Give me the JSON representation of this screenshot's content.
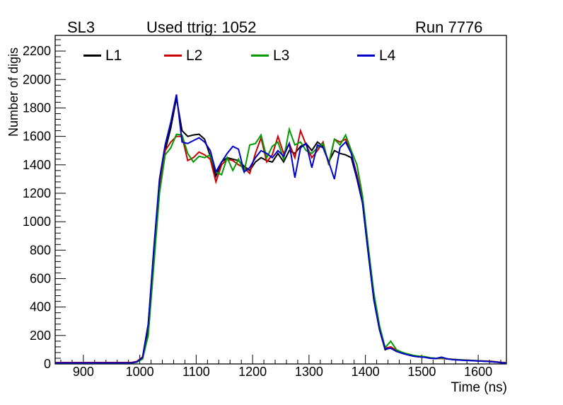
{
  "chart_data": {
    "type": "line",
    "titles": {
      "left": "SL3",
      "center": "Used ttrig: 1052",
      "right": "Run 7776"
    },
    "xlabel": "Time (ns)",
    "ylabel": "Number of digis",
    "xlim": [
      850,
      1650
    ],
    "ylim": [
      0,
      2310
    ],
    "x_major_ticks": [
      900,
      1000,
      1100,
      1200,
      1300,
      1400,
      1500,
      1600
    ],
    "x_minor_step": 20,
    "y_major_ticks": [
      0,
      200,
      400,
      600,
      800,
      1000,
      1200,
      1400,
      1600,
      1800,
      2000,
      2200
    ],
    "y_minor_step": 40,
    "bin_width_ns": 10,
    "grid": false,
    "legend_position": "top-inside",
    "frame_color": "#000000",
    "background_color": "#ffffff",
    "x": [
      855,
      865,
      875,
      885,
      895,
      905,
      915,
      925,
      935,
      945,
      955,
      965,
      975,
      985,
      995,
      1005,
      1015,
      1025,
      1035,
      1045,
      1055,
      1065,
      1075,
      1085,
      1095,
      1105,
      1115,
      1125,
      1135,
      1145,
      1155,
      1165,
      1175,
      1185,
      1195,
      1205,
      1215,
      1225,
      1235,
      1245,
      1255,
      1265,
      1275,
      1285,
      1295,
      1305,
      1315,
      1325,
      1335,
      1345,
      1355,
      1365,
      1375,
      1385,
      1395,
      1405,
      1415,
      1425,
      1435,
      1445,
      1455,
      1465,
      1475,
      1485,
      1495,
      1505,
      1515,
      1525,
      1535,
      1545,
      1555,
      1565,
      1575,
      1585,
      1595,
      1605,
      1615,
      1625,
      1635,
      1645
    ],
    "series": [
      {
        "name": "L1",
        "color": "#000000",
        "values": [
          8,
          8,
          8,
          8,
          8,
          8,
          8,
          8,
          8,
          8,
          8,
          8,
          8,
          8,
          15,
          40,
          250,
          750,
          1230,
          1500,
          1660,
          1870,
          1640,
          1600,
          1610,
          1615,
          1580,
          1460,
          1320,
          1420,
          1450,
          1440,
          1430,
          1390,
          1360,
          1420,
          1450,
          1430,
          1420,
          1480,
          1420,
          1500,
          1480,
          1530,
          1550,
          1500,
          1560,
          1530,
          1420,
          1500,
          1480,
          1470,
          1450,
          1300,
          1130,
          780,
          450,
          240,
          100,
          115,
          90,
          75,
          65,
          55,
          50,
          48,
          40,
          38,
          40,
          35,
          32,
          28,
          26,
          25,
          22,
          20,
          18,
          15,
          12,
          8
        ]
      },
      {
        "name": "L2",
        "color": "#cc0000",
        "values": [
          10,
          10,
          10,
          10,
          10,
          10,
          10,
          10,
          10,
          10,
          10,
          10,
          10,
          10,
          18,
          50,
          280,
          800,
          1260,
          1500,
          1560,
          1600,
          1600,
          1430,
          1450,
          1490,
          1470,
          1440,
          1280,
          1400,
          1440,
          1430,
          1400,
          1380,
          1340,
          1480,
          1590,
          1420,
          1470,
          1600,
          1480,
          1550,
          1450,
          1640,
          1540,
          1450,
          1500,
          1560,
          1400,
          1580,
          1560,
          1580,
          1480,
          1330,
          1150,
          800,
          470,
          250,
          110,
          120,
          95,
          80,
          68,
          58,
          52,
          50,
          42,
          40,
          38,
          36,
          33,
          30,
          28,
          26,
          24,
          22,
          20,
          18,
          14,
          10
        ]
      },
      {
        "name": "L3",
        "color": "#009c00",
        "values": [
          6,
          6,
          6,
          6,
          6,
          6,
          6,
          6,
          6,
          6,
          6,
          6,
          6,
          6,
          12,
          35,
          200,
          700,
          1200,
          1470,
          1520,
          1615,
          1610,
          1480,
          1420,
          1460,
          1450,
          1470,
          1350,
          1330,
          1450,
          1360,
          1440,
          1350,
          1540,
          1550,
          1610,
          1450,
          1530,
          1560,
          1440,
          1650,
          1540,
          1560,
          1500,
          1480,
          1520,
          1550,
          1410,
          1580,
          1540,
          1610,
          1500,
          1400,
          1180,
          830,
          500,
          270,
          115,
          160,
          100,
          82,
          70,
          60,
          55,
          52,
          44,
          40,
          42,
          36,
          32,
          30,
          27,
          25,
          23,
          21,
          18,
          16,
          12,
          8
        ]
      },
      {
        "name": "L4",
        "color": "#0000cc",
        "values": [
          7,
          7,
          7,
          7,
          7,
          7,
          7,
          7,
          7,
          7,
          7,
          7,
          7,
          7,
          15,
          45,
          280,
          820,
          1300,
          1540,
          1700,
          1895,
          1560,
          1550,
          1570,
          1590,
          1560,
          1500,
          1350,
          1420,
          1480,
          1530,
          1510,
          1350,
          1380,
          1450,
          1500,
          1480,
          1450,
          1500,
          1460,
          1550,
          1310,
          1520,
          1550,
          1380,
          1540,
          1520,
          1420,
          1300,
          1520,
          1560,
          1480,
          1310,
          1130,
          780,
          450,
          240,
          105,
          110,
          88,
          75,
          64,
          55,
          50,
          47,
          40,
          38,
          48,
          36,
          30,
          28,
          25,
          24,
          22,
          20,
          18,
          15,
          12,
          6
        ]
      }
    ]
  }
}
